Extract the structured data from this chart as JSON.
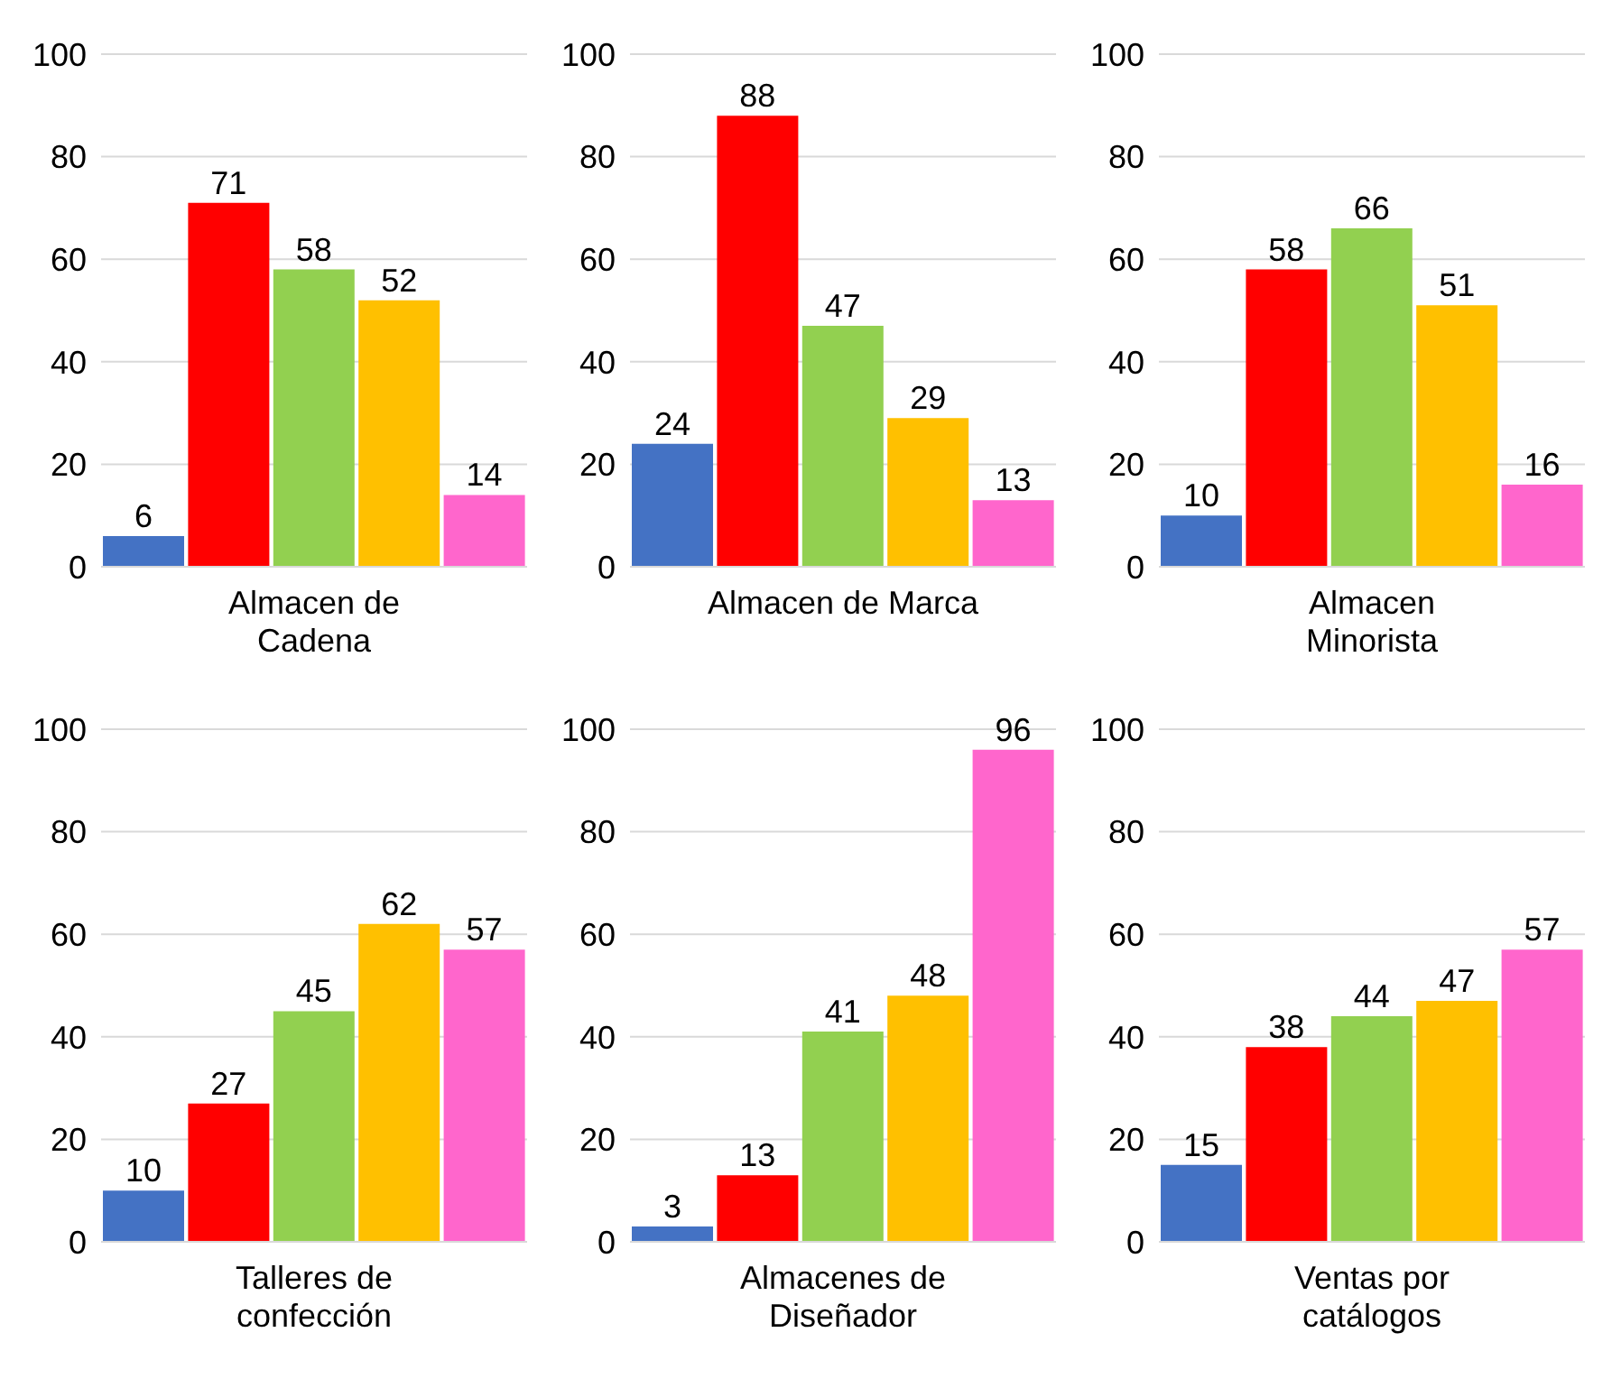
{
  "chart_data": [
    {
      "type": "bar",
      "xlabel": "Almacen de Cadena",
      "categories": [
        null,
        null,
        null,
        null,
        null
      ],
      "values": [
        6,
        71,
        58,
        52,
        14
      ],
      "colors": [
        "#4472c4",
        "#ff0000",
        "#92d050",
        "#ffc000",
        "#ff66cc"
      ],
      "ylim": [
        0,
        100
      ],
      "yticks": [
        0,
        20,
        40,
        60,
        80,
        100
      ],
      "grid": "y",
      "data_labels": true
    },
    {
      "type": "bar",
      "xlabel": "Almacen de Marca",
      "categories": [
        null,
        null,
        null,
        null,
        null
      ],
      "values": [
        24,
        88,
        47,
        29,
        13
      ],
      "colors": [
        "#4472c4",
        "#ff0000",
        "#92d050",
        "#ffc000",
        "#ff66cc"
      ],
      "ylim": [
        0,
        100
      ],
      "yticks": [
        0,
        20,
        40,
        60,
        80,
        100
      ],
      "grid": "y",
      "data_labels": true
    },
    {
      "type": "bar",
      "xlabel": "Almacen Minorista",
      "categories": [
        null,
        null,
        null,
        null,
        null
      ],
      "values": [
        10,
        58,
        66,
        51,
        16
      ],
      "colors": [
        "#4472c4",
        "#ff0000",
        "#92d050",
        "#ffc000",
        "#ff66cc"
      ],
      "ylim": [
        0,
        100
      ],
      "yticks": [
        0,
        20,
        40,
        60,
        80,
        100
      ],
      "grid": "y",
      "data_labels": true
    },
    {
      "type": "bar",
      "xlabel": "Talleres de confección",
      "categories": [
        null,
        null,
        null,
        null,
        null
      ],
      "values": [
        10,
        27,
        45,
        62,
        57
      ],
      "colors": [
        "#4472c4",
        "#ff0000",
        "#92d050",
        "#ffc000",
        "#ff66cc"
      ],
      "ylim": [
        0,
        100
      ],
      "yticks": [
        0,
        20,
        40,
        60,
        80,
        100
      ],
      "grid": "y",
      "data_labels": true
    },
    {
      "type": "bar",
      "xlabel": "Almacenes de Diseñador",
      "categories": [
        null,
        null,
        null,
        null,
        null
      ],
      "values": [
        3,
        13,
        41,
        48,
        96
      ],
      "colors": [
        "#4472c4",
        "#ff0000",
        "#92d050",
        "#ffc000",
        "#ff66cc"
      ],
      "ylim": [
        0,
        100
      ],
      "yticks": [
        0,
        20,
        40,
        60,
        80,
        100
      ],
      "grid": "y",
      "data_labels": true
    },
    {
      "type": "bar",
      "xlabel": "Ventas por catálogos",
      "categories": [
        null,
        null,
        null,
        null,
        null
      ],
      "values": [
        15,
        38,
        44,
        47,
        57
      ],
      "colors": [
        "#4472c4",
        "#ff0000",
        "#92d050",
        "#ffc000",
        "#ff66cc"
      ],
      "ylim": [
        0,
        100
      ],
      "yticks": [
        0,
        20,
        40,
        60,
        80,
        100
      ],
      "grid": "y",
      "data_labels": true
    }
  ]
}
